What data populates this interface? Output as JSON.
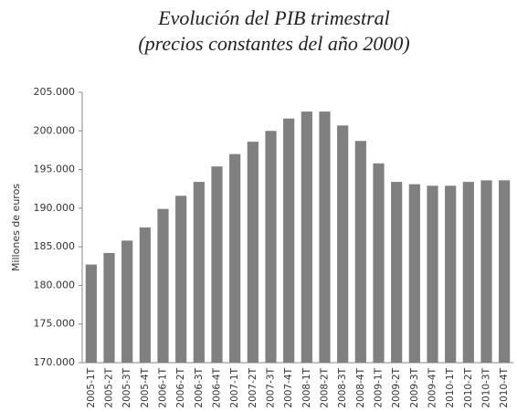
{
  "chart_data": {
    "type": "bar",
    "title": "Evolución del PIB trimestral",
    "subtitle": "(precios constantes del año 2000)",
    "y_label": "Millones de euros",
    "categories": [
      "2005-1T",
      "2005-2T",
      "2005-3T",
      "2005-4T",
      "2006-1T",
      "2006-2T",
      "2006-3T",
      "2006-4T",
      "2007-1T",
      "2007-2T",
      "2007-3T",
      "2007-4T",
      "2008-1T",
      "2008-2T",
      "2008-3T",
      "2008-4T",
      "2009-1T",
      "2009-2T",
      "2009-3T",
      "2009-4T",
      "2010-1T",
      "2010-2T",
      "2010-3T",
      "2010-4T"
    ],
    "values": [
      182700,
      184200,
      185800,
      187500,
      189900,
      191600,
      193400,
      195400,
      197000,
      198600,
      200000,
      201600,
      202500,
      202500,
      200700,
      198700,
      195800,
      193400,
      193100,
      192900,
      192900,
      193400,
      193600,
      193600
    ],
    "color": "#808080",
    "ylim": [
      170000,
      205000
    ],
    "yticks": [
      {
        "value": 170000,
        "label": "170.000"
      },
      {
        "value": 175000,
        "label": "175.000"
      },
      {
        "value": 180000,
        "label": "180.000"
      },
      {
        "value": 185000,
        "label": "185.000"
      },
      {
        "value": 190000,
        "label": "190.000"
      },
      {
        "value": 195000,
        "label": "195.000"
      },
      {
        "value": 200000,
        "label": "200.000"
      },
      {
        "value": 205000,
        "label": "205.000"
      }
    ],
    "grid": false
  }
}
